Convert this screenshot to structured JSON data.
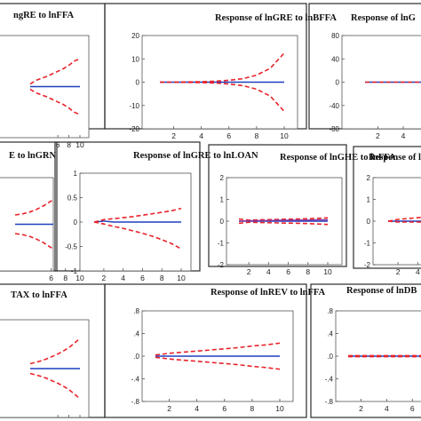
{
  "chart_data": [
    {
      "type": "line",
      "title": "ngRE to lnFFA",
      "xticks": [
        6,
        8,
        10
      ],
      "yticks": [],
      "ylim": [
        -1,
        1
      ],
      "x": [
        1,
        2,
        3,
        4,
        5,
        6,
        7,
        8,
        9,
        10
      ],
      "series": [
        {
          "values": [
            0,
            0,
            0,
            0,
            0,
            0,
            0,
            0,
            0,
            0
          ],
          "color": "#1f3fbf",
          "style": "solid"
        },
        {
          "values": [
            0.05,
            0.12,
            0.16,
            0.2,
            0.25,
            0.3,
            0.35,
            0.42,
            0.5,
            0.55
          ],
          "color": "#e8232a",
          "style": "dashed"
        },
        {
          "values": [
            -0.05,
            -0.12,
            -0.16,
            -0.2,
            -0.25,
            -0.3,
            -0.35,
            -0.42,
            -0.5,
            -0.55
          ],
          "color": "#e8232a",
          "style": "dashed"
        }
      ]
    },
    {
      "type": "line",
      "title": "Response of lnGRE to lnBFFA",
      "xticks": [
        2,
        4,
        6,
        8,
        10
      ],
      "yticks": [
        -20,
        -10,
        0,
        10,
        20
      ],
      "ylim": [
        -20,
        20
      ],
      "x": [
        1,
        2,
        3,
        4,
        5,
        6,
        7,
        8,
        9,
        10
      ],
      "series": [
        {
          "values": [
            0,
            0,
            0,
            0,
            0,
            0,
            0,
            0,
            0,
            0
          ],
          "color": "#1f3fbf",
          "style": "solid"
        },
        {
          "values": [
            0,
            0,
            0.1,
            0.2,
            0.4,
            0.8,
            1.5,
            3,
            6,
            12.5
          ],
          "color": "#e8232a",
          "style": "dashed"
        },
        {
          "values": [
            0,
            0,
            -0.1,
            -0.2,
            -0.4,
            -0.8,
            -1.5,
            -3,
            -6,
            -12.5
          ],
          "color": "#e8232a",
          "style": "dashed"
        }
      ]
    },
    {
      "type": "line",
      "title": "Response of lnG",
      "xticks": [
        2,
        4,
        6
      ],
      "yticks": [
        -80,
        -40,
        0,
        40,
        80
      ],
      "ylim": [
        -80,
        80
      ],
      "x": [
        1,
        2,
        3,
        4,
        5,
        6,
        7,
        8,
        9,
        10
      ],
      "series": [
        {
          "values": [
            0,
            0,
            0,
            0,
            0,
            0,
            0,
            0,
            0,
            0
          ],
          "color": "#1f3fbf",
          "style": "solid"
        },
        {
          "values": [
            0,
            0,
            0,
            0,
            0,
            0,
            0,
            0,
            0,
            0
          ],
          "color": "#e8232a",
          "style": "dashed"
        }
      ]
    },
    {
      "type": "line",
      "title": "E to lnGRN",
      "xticks": [
        6,
        8,
        10
      ],
      "yticks": [],
      "ylim": [
        -1,
        1
      ],
      "x": [
        1,
        2,
        3,
        4,
        5,
        6,
        7,
        8,
        9,
        10
      ],
      "series": [
        {
          "values": [
            0,
            0,
            0,
            0,
            0,
            0,
            0,
            0,
            0,
            0
          ],
          "color": "#1f3fbf",
          "style": "solid"
        },
        {
          "values": [
            0.2,
            0.22,
            0.26,
            0.32,
            0.4,
            0.5,
            0.6,
            0.7,
            0.8,
            0.9
          ],
          "color": "#e8232a",
          "style": "dashed"
        },
        {
          "values": [
            -0.2,
            -0.22,
            -0.26,
            -0.32,
            -0.4,
            -0.5,
            -0.6,
            -0.7,
            -0.8,
            -0.9
          ],
          "color": "#e8232a",
          "style": "dashed"
        }
      ]
    },
    {
      "type": "line",
      "title": "Response of lnGRE to lnLOAN",
      "xticks": [
        2,
        4,
        6,
        8,
        10
      ],
      "yticks": [
        -1.0,
        -0.5,
        0.0,
        0.5,
        1.0
      ],
      "ylim": [
        -1.0,
        1.0
      ],
      "x": [
        1,
        2,
        3,
        4,
        5,
        6,
        7,
        8,
        9,
        10
      ],
      "series": [
        {
          "values": [
            0,
            0.02,
            0,
            0,
            0,
            0,
            0,
            0,
            0,
            0
          ],
          "color": "#1f3fbf",
          "style": "solid"
        },
        {
          "values": [
            0,
            0.05,
            0.07,
            0.09,
            0.11,
            0.14,
            0.17,
            0.2,
            0.23,
            0.28
          ],
          "color": "#e8232a",
          "style": "dashed"
        },
        {
          "values": [
            0,
            -0.04,
            -0.09,
            -0.13,
            -0.18,
            -0.23,
            -0.29,
            -0.36,
            -0.44,
            -0.55
          ],
          "color": "#e8232a",
          "style": "dashed"
        }
      ]
    },
    {
      "type": "line",
      "title": "Response of lnGHE to lnFFA",
      "xticks": [
        2,
        4,
        6,
        8,
        10
      ],
      "yticks": [
        -2,
        -1,
        0,
        1,
        2
      ],
      "ylim": [
        -2,
        2
      ],
      "x": [
        1,
        2,
        3,
        4,
        5,
        6,
        7,
        8,
        9,
        10
      ],
      "series": [
        {
          "values": [
            0,
            0,
            0,
            0,
            0,
            0,
            0,
            0,
            0,
            0
          ],
          "color": "#1f3fbf",
          "style": "solid"
        },
        {
          "values": [
            0.1,
            0.05,
            0.06,
            0.07,
            0.08,
            0.09,
            0.1,
            0.11,
            0.13,
            0.15
          ],
          "color": "#e8232a",
          "style": "dashed"
        },
        {
          "values": [
            -0.1,
            -0.05,
            -0.06,
            -0.07,
            -0.08,
            -0.09,
            -0.1,
            -0.11,
            -0.13,
            -0.15
          ],
          "color": "#e8232a",
          "style": "dashed"
        },
        {
          "values": [
            0,
            0.02,
            0.03,
            0.03,
            0.04,
            0.04,
            0.05,
            0.05,
            0.06,
            0.06
          ],
          "color": "#8a3a9e",
          "style": "solid"
        }
      ]
    },
    {
      "type": "line",
      "title": "Response of l",
      "xticks": [
        2,
        4
      ],
      "yticks": [
        -2,
        -1,
        0,
        1,
        2
      ],
      "ylim": [
        -2,
        2
      ],
      "x": [
        1,
        2,
        3,
        4,
        5,
        6,
        7,
        8,
        9,
        10
      ],
      "series": [
        {
          "values": [
            0,
            0,
            0,
            0,
            0,
            0,
            0,
            0,
            0,
            0
          ],
          "color": "#1f3fbf",
          "style": "solid"
        },
        {
          "values": [
            0,
            0.08,
            0.12,
            0.16,
            0.2,
            0.24,
            0.26,
            0.28,
            0.3,
            0.32
          ],
          "color": "#e8232a",
          "style": "dashed"
        },
        {
          "values": [
            0,
            -0.04,
            -0.04,
            -0.04,
            -0.04,
            -0.04,
            -0.04,
            -0.04,
            -0.04,
            -0.04
          ],
          "color": "#e8232a",
          "style": "dashed"
        }
      ]
    },
    {
      "type": "line",
      "title": "TAX to lnFFA",
      "xticks": [
        6,
        8,
        10
      ],
      "yticks": [],
      "ylim": [
        -1,
        1
      ],
      "x": [
        1,
        2,
        3,
        4,
        5,
        6,
        7,
        8,
        9,
        10
      ],
      "series": [
        {
          "values": [
            0,
            0,
            0,
            0,
            0,
            0,
            0,
            0,
            0,
            0
          ],
          "color": "#1f3fbf",
          "style": "solid"
        },
        {
          "values": [
            0.1,
            0.13,
            0.16,
            0.2,
            0.25,
            0.3,
            0.36,
            0.43,
            0.52,
            0.62
          ],
          "color": "#e8232a",
          "style": "dashed"
        },
        {
          "values": [
            -0.1,
            -0.13,
            -0.16,
            -0.2,
            -0.25,
            -0.3,
            -0.36,
            -0.43,
            -0.52,
            -0.62
          ],
          "color": "#e8232a",
          "style": "dashed"
        }
      ]
    },
    {
      "type": "line",
      "title": "Response of lnREV to lnFFA",
      "xticks": [
        2,
        4,
        6,
        8,
        10
      ],
      "yticks": [
        -0.8,
        -0.4,
        0.0,
        0.4,
        0.8
      ],
      "yticklabels": [
        "-.8",
        "-.4",
        ".0",
        ".4",
        ".8"
      ],
      "ylim": [
        -0.8,
        0.8
      ],
      "x": [
        1,
        2,
        3,
        4,
        5,
        6,
        7,
        8,
        9,
        10
      ],
      "series": [
        {
          "values": [
            0,
            0,
            0,
            0,
            0,
            0,
            0,
            0,
            0,
            0
          ],
          "color": "#1f3fbf",
          "style": "solid"
        },
        {
          "values": [
            0.02,
            0.05,
            0.07,
            0.09,
            0.11,
            0.13,
            0.15,
            0.18,
            0.2,
            0.23
          ],
          "color": "#e8232a",
          "style": "dashed"
        },
        {
          "values": [
            -0.02,
            -0.05,
            -0.07,
            -0.09,
            -0.11,
            -0.13,
            -0.15,
            -0.18,
            -0.2,
            -0.23
          ],
          "color": "#e8232a",
          "style": "dashed"
        }
      ]
    },
    {
      "type": "line",
      "title": "Response of lnDB",
      "xticks": [
        2,
        4,
        6
      ],
      "yticks": [
        -0.8,
        -0.4,
        0.0,
        0.4,
        0.8
      ],
      "yticklabels": [
        "-.8",
        "-.4",
        ".0",
        ".4",
        ".8"
      ],
      "ylim": [
        -0.8,
        0.8
      ],
      "x": [
        1,
        2,
        3,
        4,
        5,
        6,
        7,
        8,
        9,
        10
      ],
      "series": [
        {
          "values": [
            0,
            0,
            0,
            0,
            0,
            0,
            0,
            0,
            0,
            0
          ],
          "color": "#1f3fbf",
          "style": "solid"
        },
        {
          "values": [
            0.01,
            0.01,
            0.01,
            0.01,
            0.01,
            0.01,
            0.01,
            0.01,
            0.01,
            0.01
          ],
          "color": "#e8232a",
          "style": "dashed"
        },
        {
          "values": [
            -0.01,
            -0.01,
            -0.01,
            -0.01,
            -0.01,
            -0.01,
            -0.01,
            -0.01,
            -0.01,
            -0.01
          ],
          "color": "#e8232a",
          "style": "dashed"
        }
      ]
    }
  ]
}
